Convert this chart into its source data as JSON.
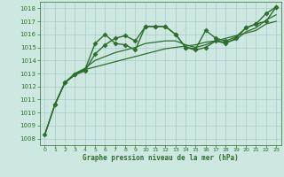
{
  "background_color": "#cce8e0",
  "grid_color": "#aacccc",
  "line_color": "#2d6e2d",
  "title": "Graphe pression niveau de la mer (hPa)",
  "xlim": [
    -0.5,
    23.5
  ],
  "ylim": [
    1007.5,
    1018.5
  ],
  "yticks": [
    1008,
    1009,
    1010,
    1011,
    1012,
    1013,
    1014,
    1015,
    1016,
    1017,
    1018
  ],
  "xticks": [
    0,
    1,
    2,
    3,
    4,
    5,
    6,
    7,
    8,
    9,
    10,
    11,
    12,
    13,
    14,
    15,
    16,
    17,
    18,
    19,
    20,
    21,
    22,
    23
  ],
  "series": [
    {
      "x": [
        1,
        2,
        3,
        4,
        5,
        6,
        7,
        8,
        9,
        10,
        11,
        12,
        13,
        14,
        15,
        16,
        17,
        18,
        19,
        20,
        21,
        22,
        23
      ],
      "y": [
        1010.6,
        1012.3,
        1012.9,
        1013.3,
        1015.3,
        1016.0,
        1015.3,
        1015.2,
        1014.8,
        1016.6,
        1016.6,
        1016.6,
        1016.0,
        1015.0,
        1014.9,
        1016.3,
        1015.7,
        1015.5,
        1015.8,
        1016.5,
        1016.8,
        1017.0,
        1018.1
      ],
      "marker": "D",
      "markersize": 2.5,
      "linewidth": 1.0
    },
    {
      "x": [
        0,
        1,
        2,
        3,
        4,
        5,
        6,
        7,
        8,
        9,
        10,
        11,
        12,
        13,
        14,
        15,
        16,
        17,
        18,
        19,
        20,
        21,
        22,
        23
      ],
      "y": [
        1008.3,
        1010.6,
        1012.3,
        1013.0,
        1013.3,
        1013.5,
        1013.7,
        1013.9,
        1014.1,
        1014.3,
        1014.5,
        1014.7,
        1014.9,
        1015.0,
        1015.1,
        1015.2,
        1015.4,
        1015.5,
        1015.7,
        1015.9,
        1016.1,
        1016.3,
        1016.8,
        1017.0
      ],
      "marker": null,
      "markersize": 0,
      "linewidth": 0.9
    },
    {
      "x": [
        0,
        1,
        2,
        3,
        4,
        5,
        6,
        7,
        8,
        9,
        10,
        11,
        12,
        13,
        14,
        15,
        16,
        17,
        18,
        19,
        20,
        21,
        22,
        23
      ],
      "y": [
        1008.3,
        1010.6,
        1012.3,
        1013.0,
        1013.4,
        1014.0,
        1014.3,
        1014.6,
        1014.8,
        1015.0,
        1015.3,
        1015.4,
        1015.5,
        1015.5,
        1015.2,
        1015.0,
        1015.2,
        1015.5,
        1015.4,
        1015.6,
        1016.2,
        1016.5,
        1017.1,
        1017.5
      ],
      "marker": null,
      "markersize": 0,
      "linewidth": 0.9
    },
    {
      "x": [
        0,
        1,
        2,
        3,
        4,
        5,
        6,
        7,
        8,
        9,
        10,
        11,
        12,
        13,
        14,
        15,
        16,
        17,
        18,
        19,
        20,
        21,
        22,
        23
      ],
      "y": [
        1008.3,
        1010.6,
        1012.3,
        1012.9,
        1013.2,
        1014.5,
        1015.2,
        1015.7,
        1015.9,
        1015.5,
        1016.6,
        1016.6,
        1016.6,
        1016.0,
        1015.0,
        1014.8,
        1015.0,
        1015.5,
        1015.3,
        1015.7,
        1016.5,
        1016.8,
        1017.6,
        1018.1
      ],
      "marker": "D",
      "markersize": 2.5,
      "linewidth": 1.0
    }
  ]
}
